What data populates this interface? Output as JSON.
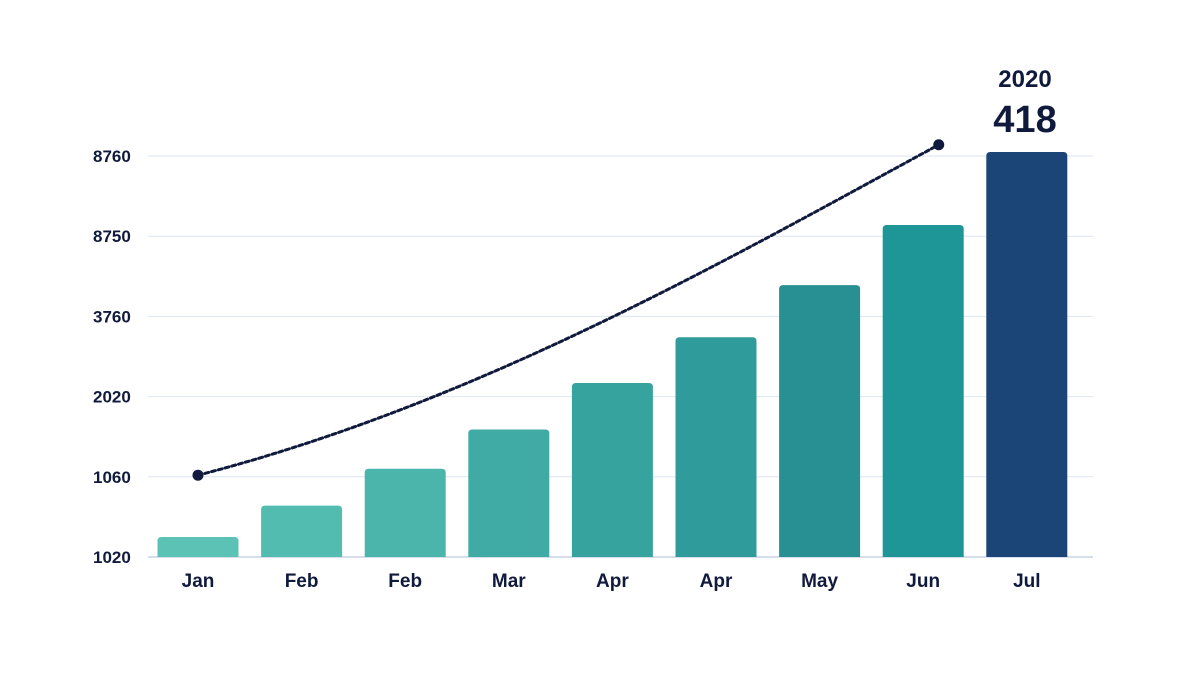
{
  "chart_data": {
    "type": "bar",
    "title": "",
    "xlabel": "",
    "ylabel": "",
    "categories": [
      "Jan",
      "Feb",
      "Feb",
      "Mar",
      "Apr",
      "Apr",
      "May",
      "Jun",
      "Jul"
    ],
    "y_tick_labels": [
      "1020",
      "1060",
      "2020",
      "3760",
      "8750",
      "8760"
    ],
    "ylim_band_index": [
      0,
      5
    ],
    "series": [
      {
        "type": "bar",
        "values_band_index": [
          0.25,
          0.64,
          1.1,
          1.59,
          2.17,
          2.74,
          3.39,
          4.14,
          5.05
        ],
        "colors": [
          "#5cc2b6",
          "#53bcb1",
          "#4bb5ab",
          "#40aba4",
          "#37a39f",
          "#2f9b9a",
          "#288f93",
          "#1e9596",
          "#1b4577"
        ]
      },
      {
        "type": "line",
        "style": "dotted",
        "color": "#101a3c",
        "x_index": [
          0,
          7.15
        ],
        "y_band_index": [
          1.02,
          5.14
        ]
      }
    ],
    "annotation": {
      "category": "Jul",
      "year": "2020",
      "value": "418"
    },
    "grid": true,
    "legend": "none"
  }
}
